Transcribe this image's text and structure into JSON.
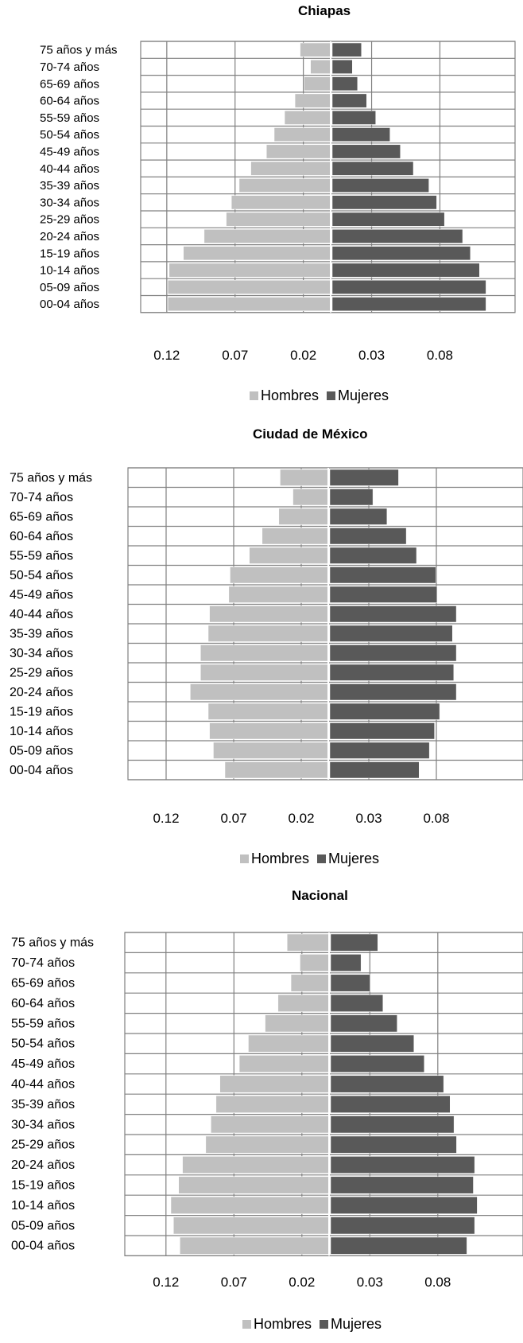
{
  "legend": {
    "hombres_label": "Hombres",
    "mujeres_label": "Mujeres",
    "hombres_color": "#c0c0c0",
    "mujeres_color": "#595959"
  },
  "age_groups": [
    "00-04 años",
    "05-09 años",
    "10-14 años",
    "15-19 años",
    "20-24 años",
    "25-29 años",
    "30-34 años",
    "35-39 años",
    "40-44 años",
    "45-49 años",
    "50-54 años",
    "55-59 años",
    "60-64 años",
    "65-69 años",
    "70-74 años",
    "75 años y más"
  ],
  "x_tick_labels": [
    "0.12",
    "0.07",
    "0.02",
    "0.03",
    "0.08"
  ],
  "chart_data": [
    {
      "type": "bar",
      "orientation": "horizontal-pyramid",
      "title": "Chiapas",
      "categories": [
        "00-04 años",
        "05-09 años",
        "10-14 años",
        "15-19 años",
        "20-24 años",
        "25-29 años",
        "30-34 años",
        "35-39 años",
        "40-44 años",
        "45-49 años",
        "50-54 años",
        "55-59 años",
        "60-64 años",
        "65-69 años",
        "70-74 años",
        "75 años y más"
      ],
      "series": [
        {
          "name": "Hombres",
          "values": [
            0.1255,
            0.1255,
            0.1245,
            0.1135,
            0.0975,
            0.0805,
            0.0765,
            0.0705,
            0.0615,
            0.0495,
            0.0435,
            0.0355,
            0.0275,
            0.0205,
            0.0155,
            0.0235
          ]
        },
        {
          "name": "Mujeres",
          "values": [
            0.1185,
            0.1185,
            0.1135,
            0.1065,
            0.1005,
            0.0865,
            0.0805,
            0.0745,
            0.0625,
            0.0525,
            0.0445,
            0.0335,
            0.0265,
            0.0195,
            0.0155,
            0.0225
          ]
        }
      ],
      "x_tick_labels": [
        "0.12",
        "0.07",
        "0.02",
        "0.03",
        "0.08"
      ],
      "grid": "vertical",
      "legend_position": "bottom"
    },
    {
      "type": "bar",
      "orientation": "horizontal-pyramid",
      "title": "Ciudad de México",
      "categories": [
        "00-04 años",
        "05-09 años",
        "10-14 años",
        "15-19 años",
        "20-24 años",
        "25-29 años",
        "30-34 años",
        "35-39 años",
        "40-44 años",
        "45-49 años",
        "50-54 años",
        "55-59 años",
        "60-64 años",
        "65-69 años",
        "70-74 años",
        "75 años y más"
      ],
      "series": [
        {
          "name": "Hombres",
          "values": [
            0.0805,
            0.0895,
            0.0925,
            0.0935,
            0.1075,
            0.0995,
            0.0995,
            0.0935,
            0.0925,
            0.0775,
            0.0765,
            0.0615,
            0.0515,
            0.0385,
            0.0275,
            0.0375
          ]
        },
        {
          "name": "Mujeres",
          "values": [
            0.0695,
            0.0775,
            0.0815,
            0.0855,
            0.0985,
            0.0965,
            0.0985,
            0.0955,
            0.0985,
            0.0835,
            0.0825,
            0.0675,
            0.0595,
            0.0445,
            0.0335,
            0.0535
          ]
        }
      ],
      "x_tick_labels": [
        "0.12",
        "0.07",
        "0.02",
        "0.03",
        "0.08"
      ],
      "grid": "vertical",
      "legend_position": "bottom"
    },
    {
      "type": "bar",
      "orientation": "horizontal-pyramid",
      "title": "Nacional",
      "categories": [
        "00-04 años",
        "05-09 años",
        "10-14 años",
        "15-19 años",
        "20-24 años",
        "25-29 años",
        "30-34 años",
        "35-39 años",
        "40-44 años",
        "45-49 años",
        "50-54 años",
        "55-59 años",
        "60-64 años",
        "65-69 años",
        "70-74 años",
        "75 años y más"
      ],
      "series": [
        {
          "name": "Hombres",
          "values": [
            0.1155,
            0.1205,
            0.1225,
            0.1165,
            0.1135,
            0.0955,
            0.0915,
            0.0875,
            0.0845,
            0.0695,
            0.0625,
            0.0495,
            0.0395,
            0.0295,
            0.0225,
            0.0325
          ]
        },
        {
          "name": "Mujeres",
          "values": [
            0.1055,
            0.1115,
            0.1135,
            0.1105,
            0.1115,
            0.0975,
            0.0955,
            0.0925,
            0.0875,
            0.0725,
            0.0645,
            0.0515,
            0.0405,
            0.0305,
            0.0235,
            0.0365
          ]
        }
      ],
      "x_tick_labels": [
        "0.12",
        "0.07",
        "0.02",
        "0.03",
        "0.08"
      ],
      "grid": "vertical",
      "legend_position": "bottom"
    }
  ]
}
